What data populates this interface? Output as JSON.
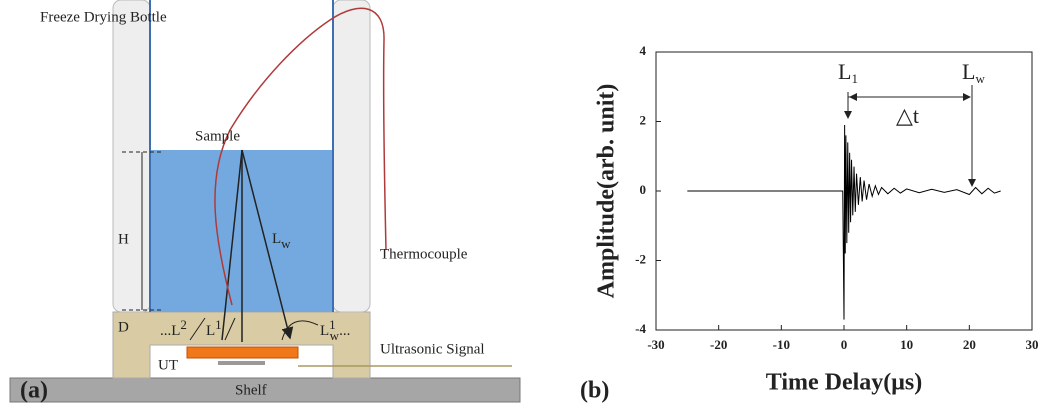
{
  "diagram": {
    "panel_label": "(a)",
    "labels": {
      "bottle": "Freeze Drying Bottle",
      "sample": "Sample",
      "height": "H",
      "depth": "D",
      "path_w": {
        "base": "L",
        "sub": "w"
      },
      "thermocouple": "Thermocouple",
      "path_2": {
        "pre": "...",
        "base": "L",
        "sup": "2"
      },
      "path_1": {
        "base": "L",
        "sup": "1"
      },
      "path_1w": {
        "base": "L",
        "sup": "1",
        "sub": "w",
        "post": "..."
      },
      "signal": "Ultrasonic Signal",
      "transducer": "UT",
      "shelf": "Shelf"
    }
  },
  "chart_data": {
    "type": "line",
    "panel_label": "(b)",
    "x_label": "Time Delay(μs)",
    "y_label": "Amplitude(arb. unit)",
    "annotations": {
      "first": {
        "base": "L",
        "sub": "1"
      },
      "water": {
        "base": "L",
        "sub": "w"
      },
      "delta": "△t"
    },
    "x": [
      -25,
      -0.2,
      0,
      0.1,
      0.2,
      0.3,
      0.45,
      0.6,
      0.75,
      0.9,
      1.05,
      1.2,
      1.4,
      1.6,
      1.8,
      2.0,
      2.3,
      2.6,
      2.9,
      3.2,
      3.6,
      4.0,
      4.5,
      5.0,
      5.5,
      6,
      7,
      8,
      9,
      10,
      12,
      14,
      16,
      18,
      20,
      21,
      22,
      23,
      24,
      25
    ],
    "values": [
      0,
      0,
      -3.7,
      1.9,
      -1.8,
      1.6,
      -1.5,
      1.4,
      -1.2,
      1.1,
      -0.9,
      0.9,
      -0.7,
      0.7,
      -0.6,
      0.5,
      -0.4,
      0.4,
      -0.3,
      0.3,
      -0.25,
      0.2,
      -0.15,
      0.15,
      -0.1,
      0.1,
      -0.08,
      0.08,
      -0.06,
      0.06,
      -0.05,
      0.05,
      -0.04,
      0.04,
      -0.1,
      0.1,
      -0.08,
      0.08,
      -0.06,
      0
    ],
    "color": "#000000",
    "xlim": [
      -30,
      30
    ],
    "xticks": [
      -30,
      -20,
      -10,
      0,
      10,
      20,
      30
    ],
    "ylim": [
      -4,
      4
    ],
    "yticks": [
      -4,
      -2,
      0,
      2,
      4
    ]
  }
}
